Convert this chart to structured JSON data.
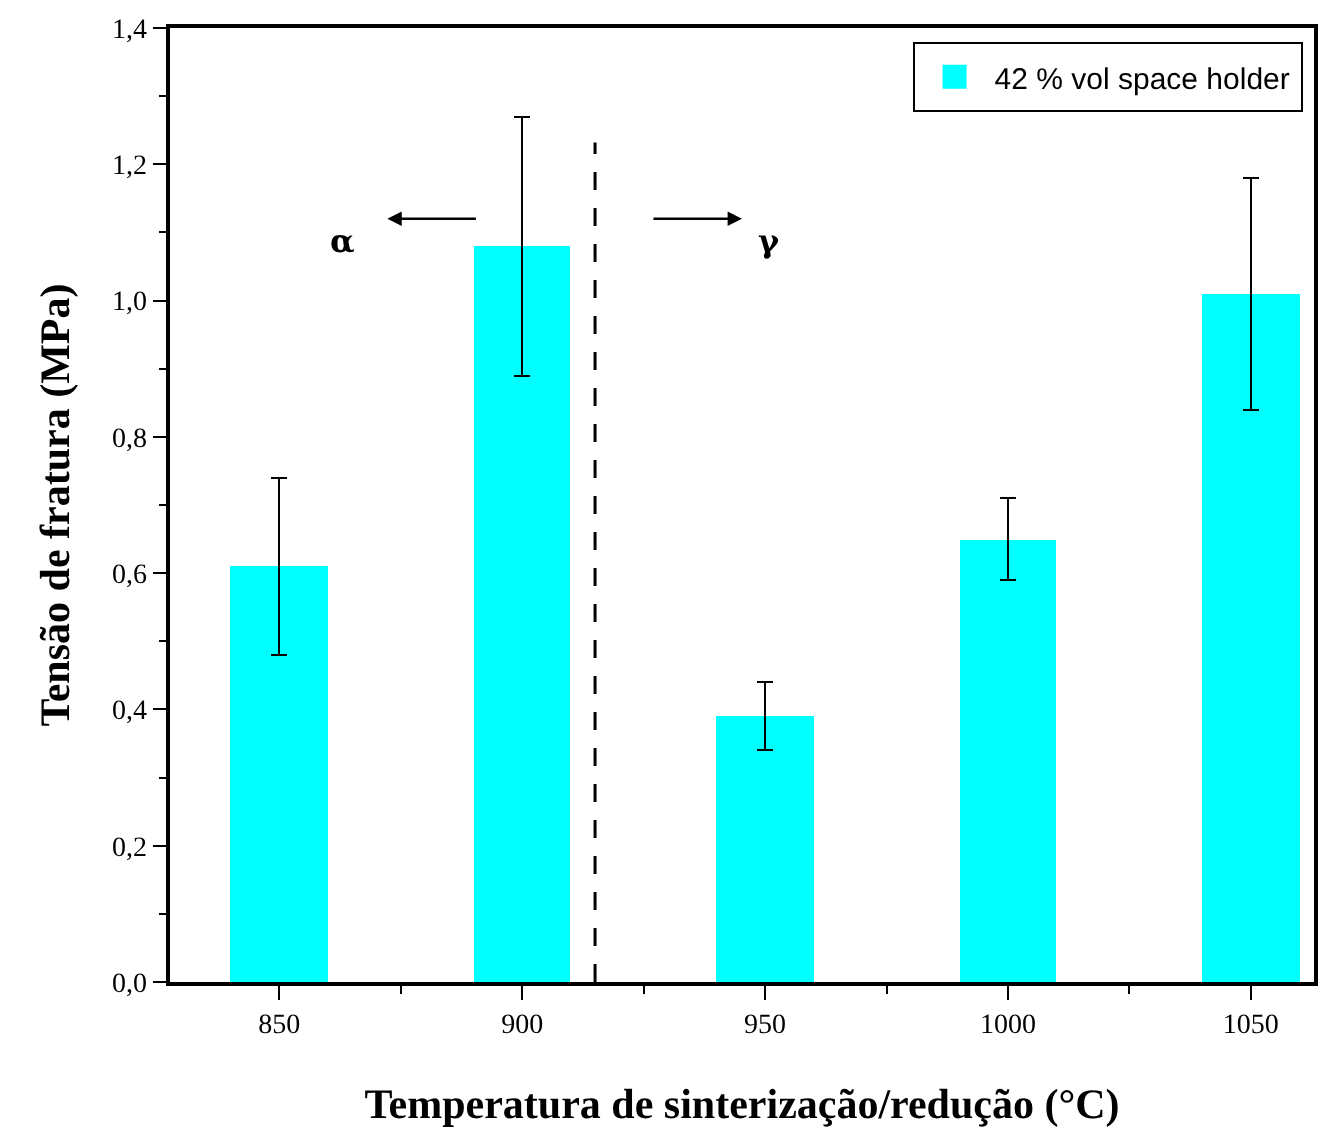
{
  "chart_data": {
    "type": "bar",
    "xlabel": "Temperatura de sinterização/redução (°C)",
    "ylabel": "Tensão de fratura (MPa)",
    "x": [
      850,
      900,
      950,
      1000,
      1050
    ],
    "series": [
      {
        "name": "42 % vol space holder",
        "color": "#00ffff",
        "values": [
          0.61,
          1.08,
          0.39,
          0.65,
          1.01
        ],
        "errors": [
          [
            0.48,
            0.74
          ],
          [
            0.89,
            1.27
          ],
          [
            0.34,
            0.44
          ],
          [
            0.59,
            0.71
          ],
          [
            0.84,
            1.18
          ]
        ]
      }
    ],
    "xlim": [
      827.5,
      1063
    ],
    "xticks": [
      850,
      900,
      950,
      1000,
      1050
    ],
    "ylim": [
      0,
      1.4
    ],
    "yticks": [
      {
        "value": 0,
        "label": "0,0"
      },
      {
        "value": 0.2,
        "label": "0,2"
      },
      {
        "value": 0.4,
        "label": "0,4"
      },
      {
        "value": 0.6,
        "label": "0,6"
      },
      {
        "value": 0.8,
        "label": "0,8"
      },
      {
        "value": 1.0,
        "label": "1,0"
      },
      {
        "value": 1.2,
        "label": "1,2"
      },
      {
        "value": 1.4,
        "label": "1,4"
      }
    ],
    "ref_lines": [
      {
        "axis": "x",
        "value": 915,
        "color": "#000000",
        "line_style": "dashed"
      }
    ],
    "annotations": [
      "α",
      "γ"
    ],
    "legend": "top right"
  }
}
